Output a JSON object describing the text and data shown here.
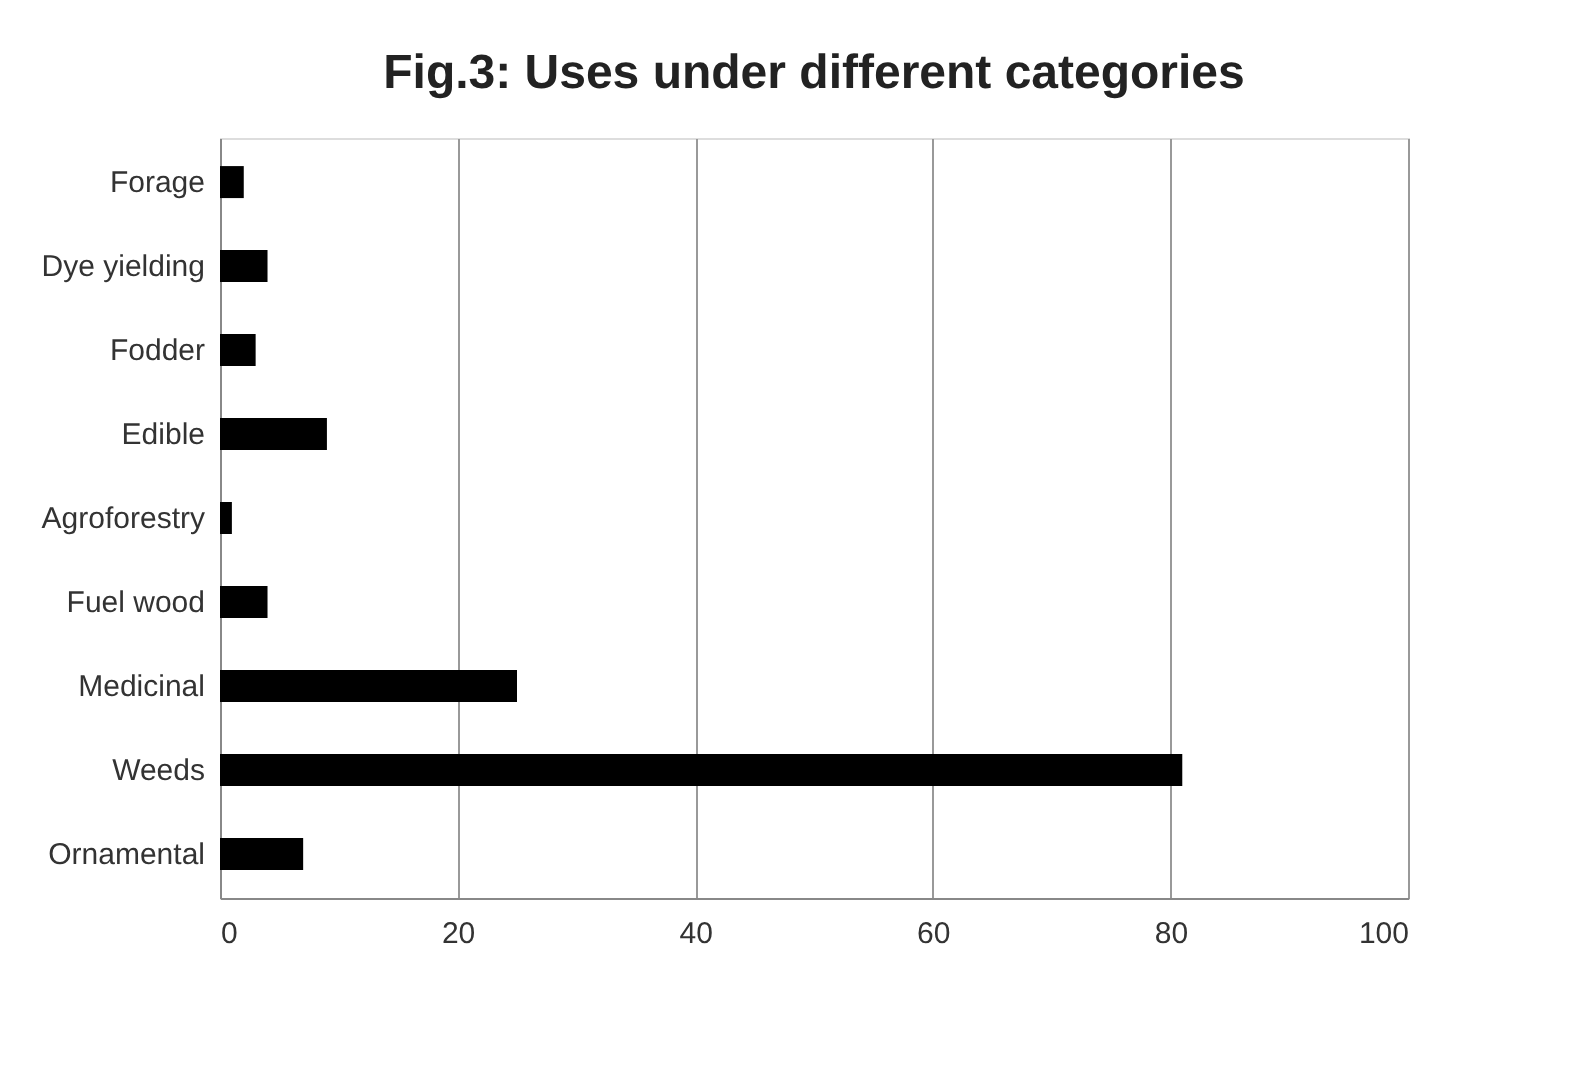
{
  "chart_data": {
    "type": "bar",
    "orientation": "horizontal",
    "title": "Fig.3: Uses under different categories",
    "categories": [
      "Forage",
      "Dye yielding",
      "Fodder",
      "Edible",
      "Agroforestry",
      "Fuel wood",
      "Medicinal",
      "Weeds",
      "Ornamental"
    ],
    "values": [
      2,
      4,
      3,
      9,
      1,
      4,
      25,
      81,
      7
    ],
    "color": "#000000",
    "xlim": [
      0,
      100
    ],
    "xticks": [
      0,
      20,
      40,
      60,
      80,
      100
    ],
    "grid": "x"
  }
}
